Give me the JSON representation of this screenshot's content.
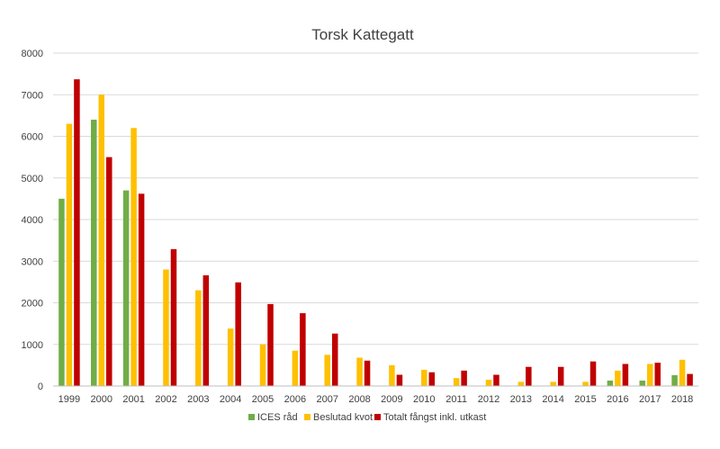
{
  "chart_data": {
    "type": "bar",
    "title": "Torsk Kattegatt",
    "xlabel": "",
    "ylabel": "",
    "ylim": [
      0,
      8000
    ],
    "yticks": [
      0,
      1000,
      2000,
      3000,
      4000,
      5000,
      6000,
      7000,
      8000
    ],
    "grid": true,
    "legend_position": "bottom",
    "categories": [
      "1999",
      "2000",
      "2001",
      "2002",
      "2003",
      "2004",
      "2005",
      "2006",
      "2007",
      "2008",
      "2009",
      "2010",
      "2011",
      "2012",
      "2013",
      "2014",
      "2015",
      "2016",
      "2017",
      "2018"
    ],
    "series": [
      {
        "name": "ICES råd",
        "color": "#70ad47",
        "values": [
          4500,
          6400,
          4700,
          null,
          null,
          null,
          null,
          null,
          null,
          null,
          null,
          null,
          null,
          null,
          null,
          null,
          null,
          130,
          130,
          260
        ]
      },
      {
        "name": "Beslutad kvot",
        "color": "#ffc000",
        "values": [
          6300,
          7000,
          6200,
          2800,
          2300,
          1380,
          1000,
          850,
          750,
          680,
          500,
          390,
          190,
          150,
          100,
          100,
          100,
          370,
          530,
          630
        ]
      },
      {
        "name": "Totalt fångst inkl. utkast",
        "color": "#c00000",
        "values": [
          7370,
          5500,
          4620,
          3290,
          2660,
          2490,
          1970,
          1750,
          1260,
          610,
          270,
          330,
          370,
          270,
          460,
          460,
          590,
          530,
          560,
          290
        ]
      }
    ]
  }
}
